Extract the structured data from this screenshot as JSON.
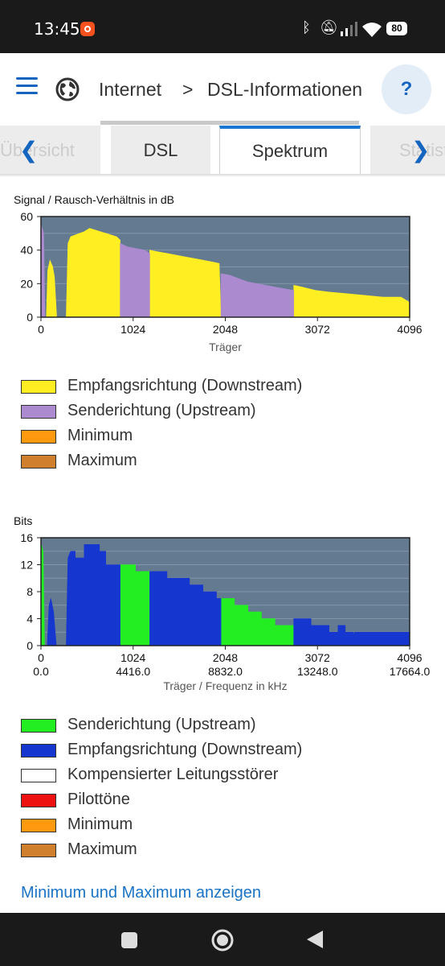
{
  "status": {
    "time": "13:45",
    "battery": "80"
  },
  "breadcrumb": {
    "root": "Internet",
    "separator": ">",
    "current": "DSL-Informationen"
  },
  "help_label": "?",
  "tabs": [
    {
      "label": "Übersicht"
    },
    {
      "label": "DSL"
    },
    {
      "label": "Spektrum"
    },
    {
      "label": "Statistik"
    }
  ],
  "snr_chart": {
    "title": "Signal / Rausch-Verhältnis in dB",
    "xlabel": "Träger",
    "legend": [
      {
        "label": "Empfangsrichtung (Downstream)",
        "color": "#ffee22"
      },
      {
        "label": "Senderichtung (Upstream)",
        "color": "#ab8ad0"
      },
      {
        "label": "Minimum",
        "color": "#ff9a10"
      },
      {
        "label": "Maximum",
        "color": "#d07f2c"
      }
    ]
  },
  "bits_chart": {
    "title": "Bits",
    "xlabel": "Träger / Frequenz in kHz",
    "legend": [
      {
        "label": "Senderichtung (Upstream)",
        "color": "#22ee22"
      },
      {
        "label": "Empfangsrichtung (Downstream)",
        "color": "#1636d0"
      },
      {
        "label": "Kompensierter Leitungsstörer",
        "color": "#ffffff"
      },
      {
        "label": "Pilottöne",
        "color": "#ee1111"
      },
      {
        "label": "Minimum",
        "color": "#ff9a10"
      },
      {
        "label": "Maximum",
        "color": "#d07f2c"
      }
    ]
  },
  "link_label": "Minimum und Maximum anzeigen",
  "chart_data": [
    {
      "type": "area",
      "title": "Signal / Rausch-Verhältnis in dB",
      "xlabel": "Träger",
      "ylabel": "",
      "xlim": [
        0,
        4096
      ],
      "ylim": [
        0,
        60
      ],
      "xticks": [
        0,
        1024,
        2048,
        3072,
        4096
      ],
      "yticks": [
        0,
        20,
        40,
        60
      ],
      "grid": true,
      "background": "#637a90",
      "series": [
        {
          "name": "Empfangsrichtung (Downstream)",
          "color": "#ffee22",
          "segments": [
            [
              [
                60,
                0
              ],
              [
                75,
                28
              ],
              [
                100,
                34
              ],
              [
                130,
                30
              ],
              [
                150,
                24
              ],
              [
                175,
                0
              ]
            ],
            [
              [
                280,
                0
              ],
              [
                300,
                44
              ],
              [
                330,
                48
              ],
              [
                380,
                49
              ],
              [
                430,
                50
              ],
              [
                480,
                51
              ],
              [
                540,
                53
              ],
              [
                600,
                52
              ],
              [
                660,
                51
              ],
              [
                720,
                50
              ],
              [
                780,
                49
              ],
              [
                840,
                48
              ],
              [
                880,
                46
              ],
              [
                880,
                0
              ]
            ],
            [
              [
                1208,
                0
              ],
              [
                1208,
                40
              ],
              [
                1300,
                39
              ],
              [
                1400,
                38
              ],
              [
                1500,
                37
              ],
              [
                1600,
                36
              ],
              [
                1700,
                35
              ],
              [
                1800,
                34
              ],
              [
                1900,
                33
              ],
              [
                1980,
                32
              ],
              [
                2000,
                0
              ]
            ],
            [
              [
                2808,
                0
              ],
              [
                2808,
                19
              ],
              [
                2900,
                18
              ],
              [
                3050,
                16
              ],
              [
                3200,
                15
              ],
              [
                3400,
                14
              ],
              [
                3600,
                13
              ],
              [
                3800,
                12
              ],
              [
                4000,
                12
              ],
              [
                4090,
                9
              ],
              [
                4096,
                0
              ]
            ]
          ]
        },
        {
          "name": "Senderichtung (Upstream)",
          "color": "#ab8ad0",
          "segments": [
            [
              [
                0,
                0
              ],
              [
                5,
                55
              ],
              [
                30,
                50
              ],
              [
                45,
                0
              ]
            ],
            [
              [
                880,
                0
              ],
              [
                880,
                44
              ],
              [
                960,
                42
              ],
              [
                1050,
                41
              ],
              [
                1150,
                40
              ],
              [
                1208,
                38
              ],
              [
                1208,
                0
              ]
            ],
            [
              [
                2000,
                0
              ],
              [
                2000,
                26
              ],
              [
                2100,
                25
              ],
              [
                2200,
                23
              ],
              [
                2300,
                21
              ],
              [
                2400,
                20
              ],
              [
                2500,
                19
              ],
              [
                2600,
                18
              ],
              [
                2700,
                17
              ],
              [
                2808,
                16
              ],
              [
                2808,
                0
              ]
            ]
          ]
        }
      ]
    },
    {
      "type": "area",
      "title": "Bits",
      "xlabel": "Träger / Frequenz in kHz",
      "ylabel": "",
      "xlim": [
        0,
        4096
      ],
      "ylim": [
        0,
        16
      ],
      "xticks": [
        0,
        1024,
        2048,
        3072,
        4096
      ],
      "xticks_secondary": [
        "0.0",
        "4416.0",
        "8832.0",
        "13248.0",
        "17664.0"
      ],
      "yticks": [
        0,
        4,
        8,
        12,
        16
      ],
      "grid": true,
      "background": "#637a90",
      "series": [
        {
          "name": "Senderichtung (Upstream)",
          "color": "#22ee22",
          "segments": [
            [
              [
                0,
                0
              ],
              [
                5,
                15
              ],
              [
                25,
                14
              ],
              [
                40,
                0
              ]
            ],
            [
              [
                880,
                0
              ],
              [
                880,
                12
              ],
              [
                1050,
                12
              ],
              [
                1050,
                11
              ],
              [
                1208,
                11
              ],
              [
                1208,
                0
              ]
            ],
            [
              [
                2000,
                0
              ],
              [
                2000,
                7
              ],
              [
                2150,
                7
              ],
              [
                2150,
                6
              ],
              [
                2300,
                6
              ],
              [
                2300,
                5
              ],
              [
                2450,
                5
              ],
              [
                2450,
                4
              ],
              [
                2600,
                4
              ],
              [
                2600,
                3
              ],
              [
                2808,
                3
              ],
              [
                2808,
                0
              ]
            ]
          ]
        },
        {
          "name": "Empfangsrichtung (Downstream)",
          "color": "#1636d0",
          "segments": [
            [
              [
                70,
                0
              ],
              [
                90,
                6
              ],
              [
                110,
                7
              ],
              [
                140,
                5
              ],
              [
                170,
                0
              ]
            ],
            [
              [
                280,
                0
              ],
              [
                300,
                13
              ],
              [
                330,
                14
              ],
              [
                380,
                14
              ],
              [
                380,
                13
              ],
              [
                480,
                13
              ],
              [
                480,
                15
              ],
              [
                650,
                15
              ],
              [
                650,
                14
              ],
              [
                720,
                14
              ],
              [
                720,
                12
              ],
              [
                880,
                12
              ],
              [
                880,
                0
              ]
            ],
            [
              [
                1208,
                0
              ],
              [
                1208,
                11
              ],
              [
                1400,
                11
              ],
              [
                1400,
                10
              ],
              [
                1650,
                10
              ],
              [
                1650,
                9
              ],
              [
                1800,
                9
              ],
              [
                1800,
                8
              ],
              [
                1950,
                8
              ],
              [
                1950,
                7
              ],
              [
                2000,
                7
              ],
              [
                2000,
                0
              ]
            ],
            [
              [
                2808,
                0
              ],
              [
                2808,
                4
              ],
              [
                3000,
                4
              ],
              [
                3000,
                3
              ],
              [
                3200,
                3
              ],
              [
                3200,
                2
              ],
              [
                3300,
                2
              ],
              [
                3300,
                3
              ],
              [
                3380,
                3
              ],
              [
                3380,
                2
              ],
              [
                3470,
                2
              ],
              [
                3475,
                1
              ],
              [
                3480,
                2
              ],
              [
                4096,
                2
              ],
              [
                4096,
                0
              ]
            ]
          ]
        }
      ]
    }
  ]
}
